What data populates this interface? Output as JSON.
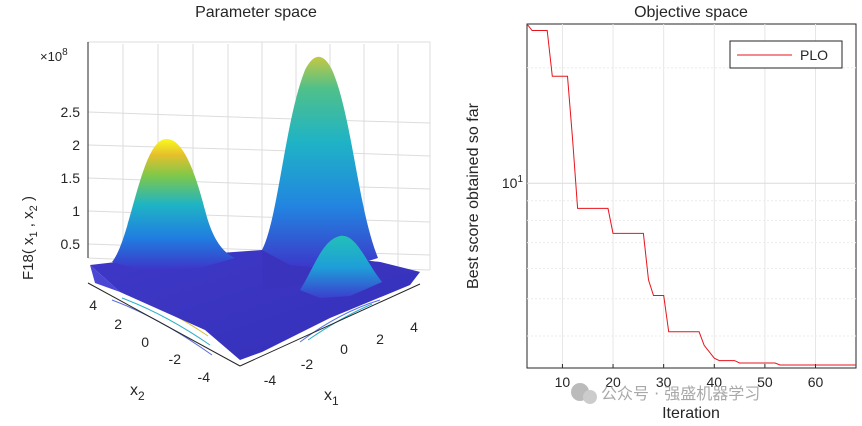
{
  "left": {
    "title": "Parameter space",
    "exponent": "×10",
    "exponent_power": "8",
    "zlabel": {
      "base": "F18( x",
      "sub1": "1",
      "mid": " , x",
      "sub2": "2",
      "end": " )"
    },
    "xlabel": {
      "base": "x",
      "sub": "1"
    },
    "ylabel": {
      "base": "x",
      "sub": "2"
    },
    "zticks": [
      "0.5",
      "1",
      "1.5",
      "2",
      "2.5"
    ],
    "xticks": [
      "-4",
      "-2",
      "0",
      "2",
      "4"
    ],
    "yticks": [
      "4",
      "2",
      "0",
      "-2",
      "-4"
    ]
  },
  "chart_data": [
    {
      "type": "surface",
      "title": "Parameter space",
      "xlabel": "x1",
      "ylabel": "x2",
      "zlabel": "F18( x1 , x2 )",
      "zscale_factor": "×10^8",
      "xlim": [
        -5,
        5
      ],
      "ylim": [
        -5,
        5
      ],
      "zlim": [
        0,
        2.7
      ],
      "colormap": "parula",
      "peaks": [
        {
          "label": "peak near x1=-4, x2=-4 side",
          "z": 2.1
        },
        {
          "label": "peak near x1=4, x2=4 side",
          "z": 2.6
        },
        {
          "label": "peak near x1=4, x2=-4 side",
          "z": 0.9
        }
      ]
    },
    {
      "type": "line",
      "title": "Objective space",
      "xlabel": "Iteration",
      "ylabel": "Best score obtained so far",
      "yscale": "log",
      "xlim": [
        3,
        68
      ],
      "ylim": [
        3.3,
        26
      ],
      "xticks": [
        "10",
        "20",
        "30",
        "40",
        "50",
        "60"
      ],
      "ytick_label": {
        "base": "10",
        "power": "1"
      },
      "grid": true,
      "legend": "top-right",
      "series": [
        {
          "name": "PLO",
          "color": "#e8141b",
          "x": [
            3,
            4,
            7,
            8,
            11,
            12,
            13,
            14,
            19,
            20,
            26,
            27,
            28,
            29,
            30,
            31,
            37,
            38,
            40,
            41,
            44,
            45,
            52,
            53,
            68
          ],
          "y": [
            26,
            25,
            25,
            19,
            19,
            13,
            8.6,
            8.6,
            8.6,
            7.4,
            7.4,
            5.6,
            5.1,
            5.1,
            5.1,
            4.1,
            4.1,
            3.78,
            3.5,
            3.45,
            3.45,
            3.4,
            3.4,
            3.36,
            3.36
          ]
        }
      ]
    }
  ],
  "right": {
    "title": "Objective space",
    "xlabel": "Iteration",
    "ylabel": "Best score obtained so far",
    "legend_label": "PLO",
    "ytick_base": "10",
    "ytick_power": "1"
  },
  "watermark": "公众号 · 强盛机器学习"
}
